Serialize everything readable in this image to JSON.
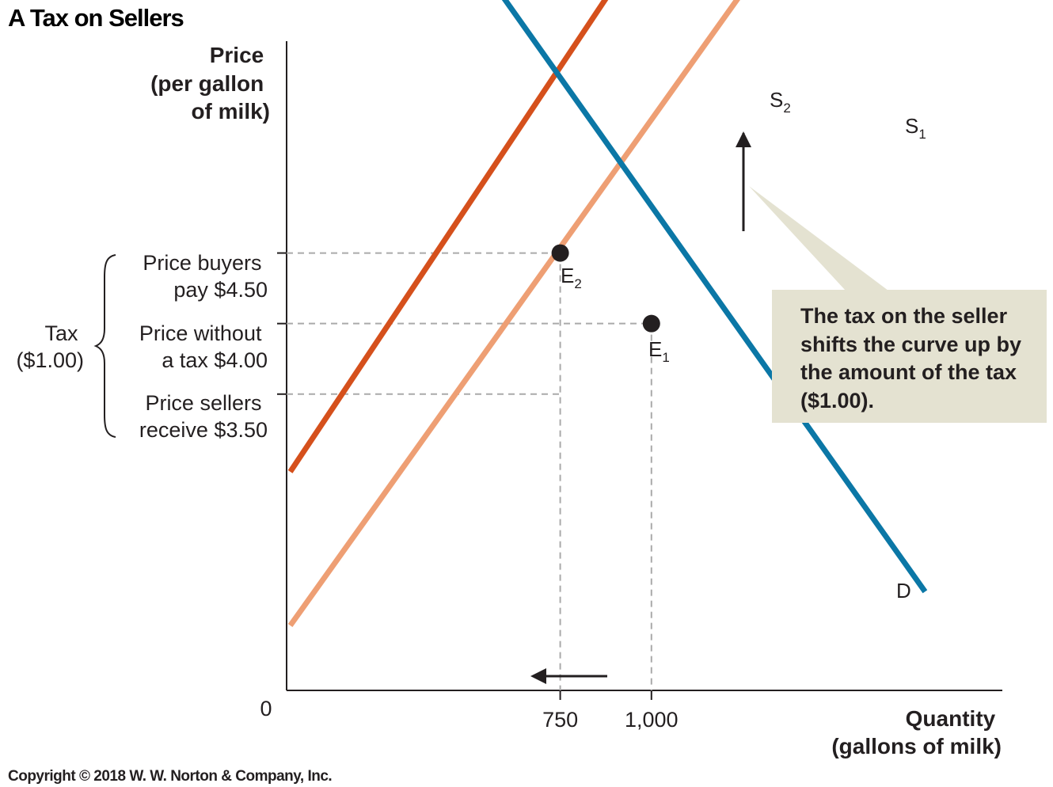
{
  "title": "A Tax on Sellers",
  "copyright": "Copyright © 2018 W. W. Norton & Company, Inc.",
  "chart_data": {
    "type": "line",
    "title": "A Tax on Sellers",
    "ylabel_lines": [
      "Price",
      "(per gallon",
      "of milk)"
    ],
    "xlabel_lines": [
      "Quantity",
      "(gallons of milk)"
    ],
    "origin_label": "0",
    "x_ticks": [
      {
        "value": 750,
        "label": "750"
      },
      {
        "value": 1000,
        "label": "1,000"
      }
    ],
    "price_levels": [
      {
        "value": 4.5,
        "lines": [
          "Price buyers",
          "pay $4.50"
        ]
      },
      {
        "value": 4.0,
        "lines": [
          "Price without",
          "a tax $4.00"
        ]
      },
      {
        "value": 3.5,
        "lines": [
          "Price sellers",
          "receive $3.50"
        ]
      }
    ],
    "tax_label": [
      "Tax",
      "($1.00)"
    ],
    "series": [
      {
        "name": "D",
        "color": "#0b77a6",
        "points": [
          [
            76,
            8.2
          ],
          [
            1750,
            2.1
          ]
        ]
      },
      {
        "name": "S2",
        "sub": "2",
        "color": "#d5501c",
        "points": [
          [
            10,
            2.95
          ],
          [
            1305,
            7.97
          ]
        ]
      },
      {
        "name": "S1",
        "sub": "1",
        "color": "#ee9f74",
        "points": [
          [
            10,
            1.86
          ],
          [
            1650,
            7.8
          ]
        ]
      }
    ],
    "equilibria": [
      {
        "name": "E",
        "sub": "2",
        "x": 750,
        "y": 4.5
      },
      {
        "name": "E",
        "sub": "1",
        "x": 1000,
        "y": 4.0
      }
    ],
    "annotation_lines": [
      "The tax on the seller",
      "shifts the curve up by",
      "the amount of the tax",
      "($1.00)."
    ],
    "annotation_color": "#e4e2d1"
  }
}
